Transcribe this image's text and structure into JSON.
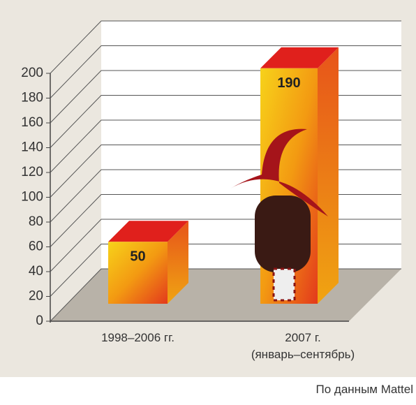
{
  "chart_data": {
    "type": "bar3d",
    "categories": [
      "1998–2006 гг.",
      "2007 г.\n(январь–сентябрь)"
    ],
    "values": [
      50,
      190
    ],
    "ylim": [
      0,
      200
    ],
    "yticks": [
      0,
      20,
      40,
      60,
      80,
      100,
      120,
      140,
      160,
      180,
      200
    ],
    "grid": true,
    "source": "По данным Mattel"
  }
}
